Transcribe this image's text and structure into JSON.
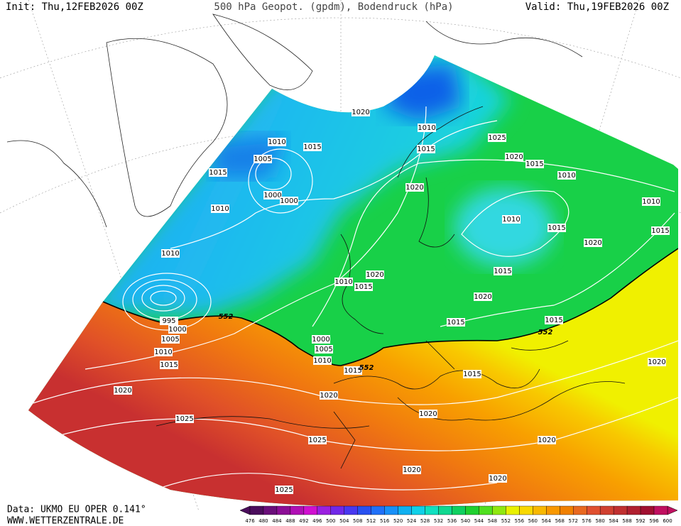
{
  "header": {
    "init": "Init: Thu,12FEB2026 00Z",
    "title": "500 hPa Geopot. (gpdm), Bodendruck (hPa)",
    "valid": "Valid: Thu,19FEB2026 00Z"
  },
  "isobar_labels": [
    1020,
    1010,
    1025,
    1010,
    1015,
    1015,
    1020,
    1015,
    1005,
    1015,
    1010,
    1020,
    1000,
    1000,
    1010,
    1010,
    1010,
    1015,
    1015,
    1020,
    1010,
    1020,
    1015,
    1010,
    1015,
    1020,
    995,
    1000,
    1015,
    1015,
    1005,
    1000,
    1005,
    1010,
    1010,
    1015,
    1015,
    1015,
    1020,
    1020,
    1020,
    1020,
    1025,
    1025,
    1020,
    1020,
    1020,
    1025
  ],
  "contour_labels": [
    552,
    552,
    552
  ],
  "footer": {
    "source": "Data: UKMO EU OPER 0.141°",
    "site": "WWW.WETTERZENTRALE.DE"
  },
  "legend": {
    "ticks": [
      476,
      480,
      484,
      488,
      492,
      496,
      500,
      504,
      508,
      512,
      516,
      520,
      524,
      528,
      532,
      536,
      540,
      544,
      548,
      552,
      556,
      560,
      564,
      568,
      572,
      576,
      580,
      584,
      588,
      592,
      596,
      600
    ],
    "colors": [
      "#4b0d5c",
      "#6a0f7a",
      "#8c0f96",
      "#b010b4",
      "#d010d0",
      "#9a20e0",
      "#7028e8",
      "#4838f0",
      "#2850f0",
      "#2070f8",
      "#1890f8",
      "#10b0f0",
      "#10d0e8",
      "#10e0c0",
      "#10d890",
      "#10d060",
      "#20d030",
      "#50e020",
      "#90e810",
      "#e8f000",
      "#f8d800",
      "#f8b800",
      "#f89800",
      "#f08000",
      "#e86820",
      "#e05030",
      "#d04030",
      "#c03030",
      "#b02030",
      "#a01030",
      "#c01060"
    ]
  }
}
